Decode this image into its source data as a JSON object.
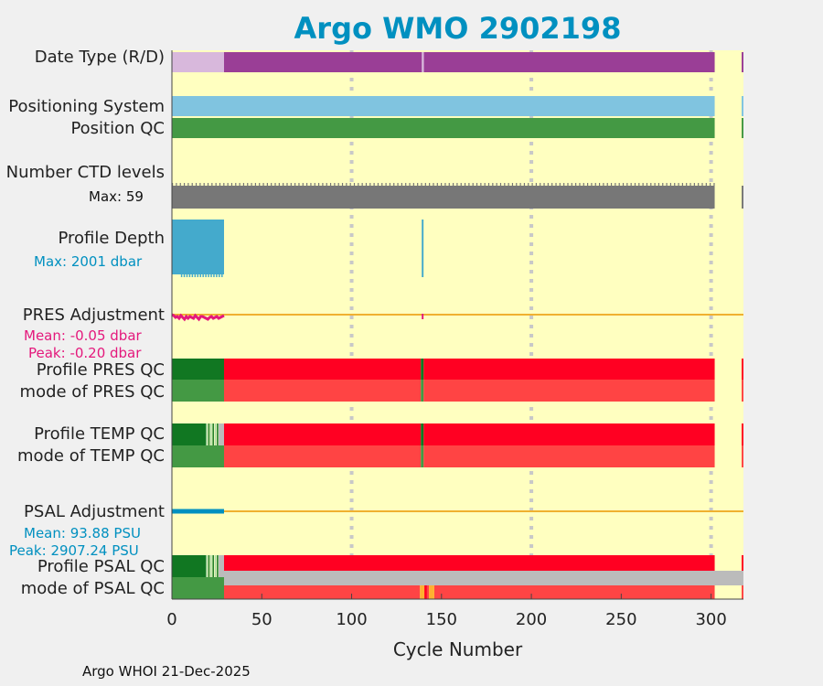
{
  "title": "Argo WMO 2902198",
  "footer": "Argo WHOI 21-Dec-2025",
  "rows": {
    "date_type": "Date Type (R/D)",
    "positioning": "Positioning System",
    "position_qc": "Position QC",
    "ctd_levels": "Number CTD levels",
    "ctd_max": "Max: 59",
    "profile_depth": "Profile Depth",
    "depth_max": "Max: 2001 dbar",
    "pres_adj": "PRES Adjustment",
    "pres_mean": "Mean: -0.05 dbar",
    "pres_peak": "Peak: -0.20 dbar",
    "pres_qc": "Profile PRES QC",
    "pres_mode": "mode of PRES QC",
    "temp_qc": "Profile TEMP QC",
    "temp_mode": "mode of TEMP QC",
    "psal_adj": "PSAL Adjustment",
    "psal_mean": "Mean: 93.88 PSU",
    "psal_peak": "Peak: 2907.24 PSU",
    "psal_qc": "Profile PSAL QC",
    "psal_mode": "mode of PSAL QC"
  },
  "colors": {
    "background": "#ffffc0",
    "realtime": "#d8b8dc",
    "delayed": "#9a3e96",
    "positioning": "#80c4e0",
    "good": "#449944",
    "good_dark": "#117722",
    "bad": "#ff0022",
    "bad_light": "#ff4444",
    "ctd": "#777777",
    "depth": "#44aacc",
    "pres_adj": "#e4187c",
    "psal_adj": "#0090c0",
    "zero_line": "#f0b030",
    "gray": "#bbbbbb",
    "orange": "#ffb030",
    "title": "#0090c0"
  },
  "chart_data": {
    "type": "timeline",
    "title": "Argo WMO 2902198",
    "xlabel": "Cycle Number",
    "xlim": [
      0,
      318
    ],
    "xticks": [
      0,
      50,
      100,
      150,
      200,
      250,
      300
    ],
    "grid_x": [
      100,
      200,
      300
    ],
    "last_cycle": 302,
    "extra_cycle": 317,
    "date_type": {
      "realtime": [
        [
          0,
          29
        ]
      ],
      "delayed": [
        [
          29,
          302
        ],
        [
          317,
          318
        ]
      ],
      "realtime_cycles": [
        139
      ]
    },
    "positioning_system": [
      [
        0,
        302
      ],
      [
        317,
        318
      ]
    ],
    "position_qc": [
      [
        0,
        302
      ],
      [
        317,
        318
      ]
    ],
    "ctd_levels_max": 59,
    "profile_depth": {
      "max_dbar": 2001,
      "cycles_range": [
        0,
        29
      ],
      "extra_cycles": [
        139,
        140
      ]
    },
    "pres_adjustment": {
      "mean_dbar": -0.05,
      "peak_dbar": -0.2,
      "range": [
        0,
        29
      ],
      "extra_cycle": 139
    },
    "pres_qc": {
      "good": [
        [
          0,
          29
        ],
        [
          138.5,
          140
        ]
      ],
      "bad": [
        [
          29,
          138.5
        ],
        [
          140,
          302
        ],
        [
          317,
          318
        ]
      ]
    },
    "temp_qc": {
      "good": [
        [
          0,
          19
        ],
        [
          138.5,
          140
        ]
      ],
      "mixed": [
        [
          19,
          26
        ]
      ],
      "gray": [
        [
          26,
          29
        ]
      ],
      "bad": [
        [
          29,
          138.5
        ],
        [
          140,
          302
        ],
        [
          317,
          318
        ]
      ]
    },
    "psal_adjustment": {
      "mean_psu": 93.88,
      "peak_psu": 2907.24,
      "range": [
        0,
        29
      ]
    },
    "psal_qc": {
      "good": [
        [
          0,
          19
        ]
      ],
      "mixed": [
        [
          19,
          26
        ]
      ],
      "gray": [
        [
          26,
          29
        ]
      ],
      "bad": [
        [
          29,
          302
        ],
        [
          317,
          318
        ]
      ]
    },
    "psal_mode": {
      "good": [
        [
          0,
          29
        ]
      ],
      "gray_top": [
        [
          29,
          318
        ]
      ],
      "bad": [
        [
          29,
          138
        ],
        [
          141,
          143
        ],
        [
          146,
          302
        ],
        [
          317,
          318
        ]
      ],
      "orange": [
        [
          138,
          141
        ],
        [
          143,
          146
        ]
      ]
    }
  }
}
